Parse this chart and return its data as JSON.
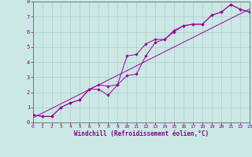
{
  "xlabel": "Windchill (Refroidissement éolien,°C)",
  "ylabel": "",
  "background_color": "#cce8e4",
  "grid_color": "#aacccc",
  "line_color": "#990099",
  "xlim": [
    0,
    23
  ],
  "ylim": [
    0,
    8
  ],
  "xticks": [
    0,
    1,
    2,
    3,
    4,
    5,
    6,
    7,
    8,
    9,
    10,
    11,
    12,
    13,
    14,
    15,
    16,
    17,
    18,
    19,
    20,
    21,
    22,
    23
  ],
  "yticks": [
    0,
    1,
    2,
    3,
    4,
    5,
    6,
    7,
    8
  ],
  "line1_x": [
    0,
    1,
    2,
    3,
    4,
    5,
    6,
    7,
    8,
    9,
    10,
    11,
    12,
    13,
    14,
    15,
    16,
    17,
    18,
    19,
    20,
    21,
    22,
    23
  ],
  "line1_y": [
    0.5,
    0.4,
    0.4,
    1.0,
    1.3,
    1.5,
    2.2,
    2.5,
    2.4,
    2.5,
    3.1,
    3.2,
    4.4,
    5.3,
    5.5,
    6.0,
    6.4,
    6.5,
    6.5,
    7.1,
    7.3,
    7.8,
    7.5,
    7.3
  ],
  "line2_x": [
    0,
    1,
    2,
    3,
    4,
    5,
    6,
    7,
    8,
    9,
    10,
    11,
    12,
    13,
    14,
    15,
    16,
    17,
    18,
    19,
    20,
    21,
    22,
    23
  ],
  "line2_y": [
    0.5,
    0.4,
    0.4,
    1.0,
    1.3,
    1.5,
    2.2,
    2.2,
    1.8,
    2.5,
    4.4,
    4.5,
    5.2,
    5.5,
    5.5,
    6.1,
    6.4,
    6.5,
    6.5,
    7.1,
    7.3,
    7.8,
    7.5,
    7.3
  ],
  "line3_x": [
    0,
    23
  ],
  "line3_y": [
    0.3,
    7.5
  ]
}
